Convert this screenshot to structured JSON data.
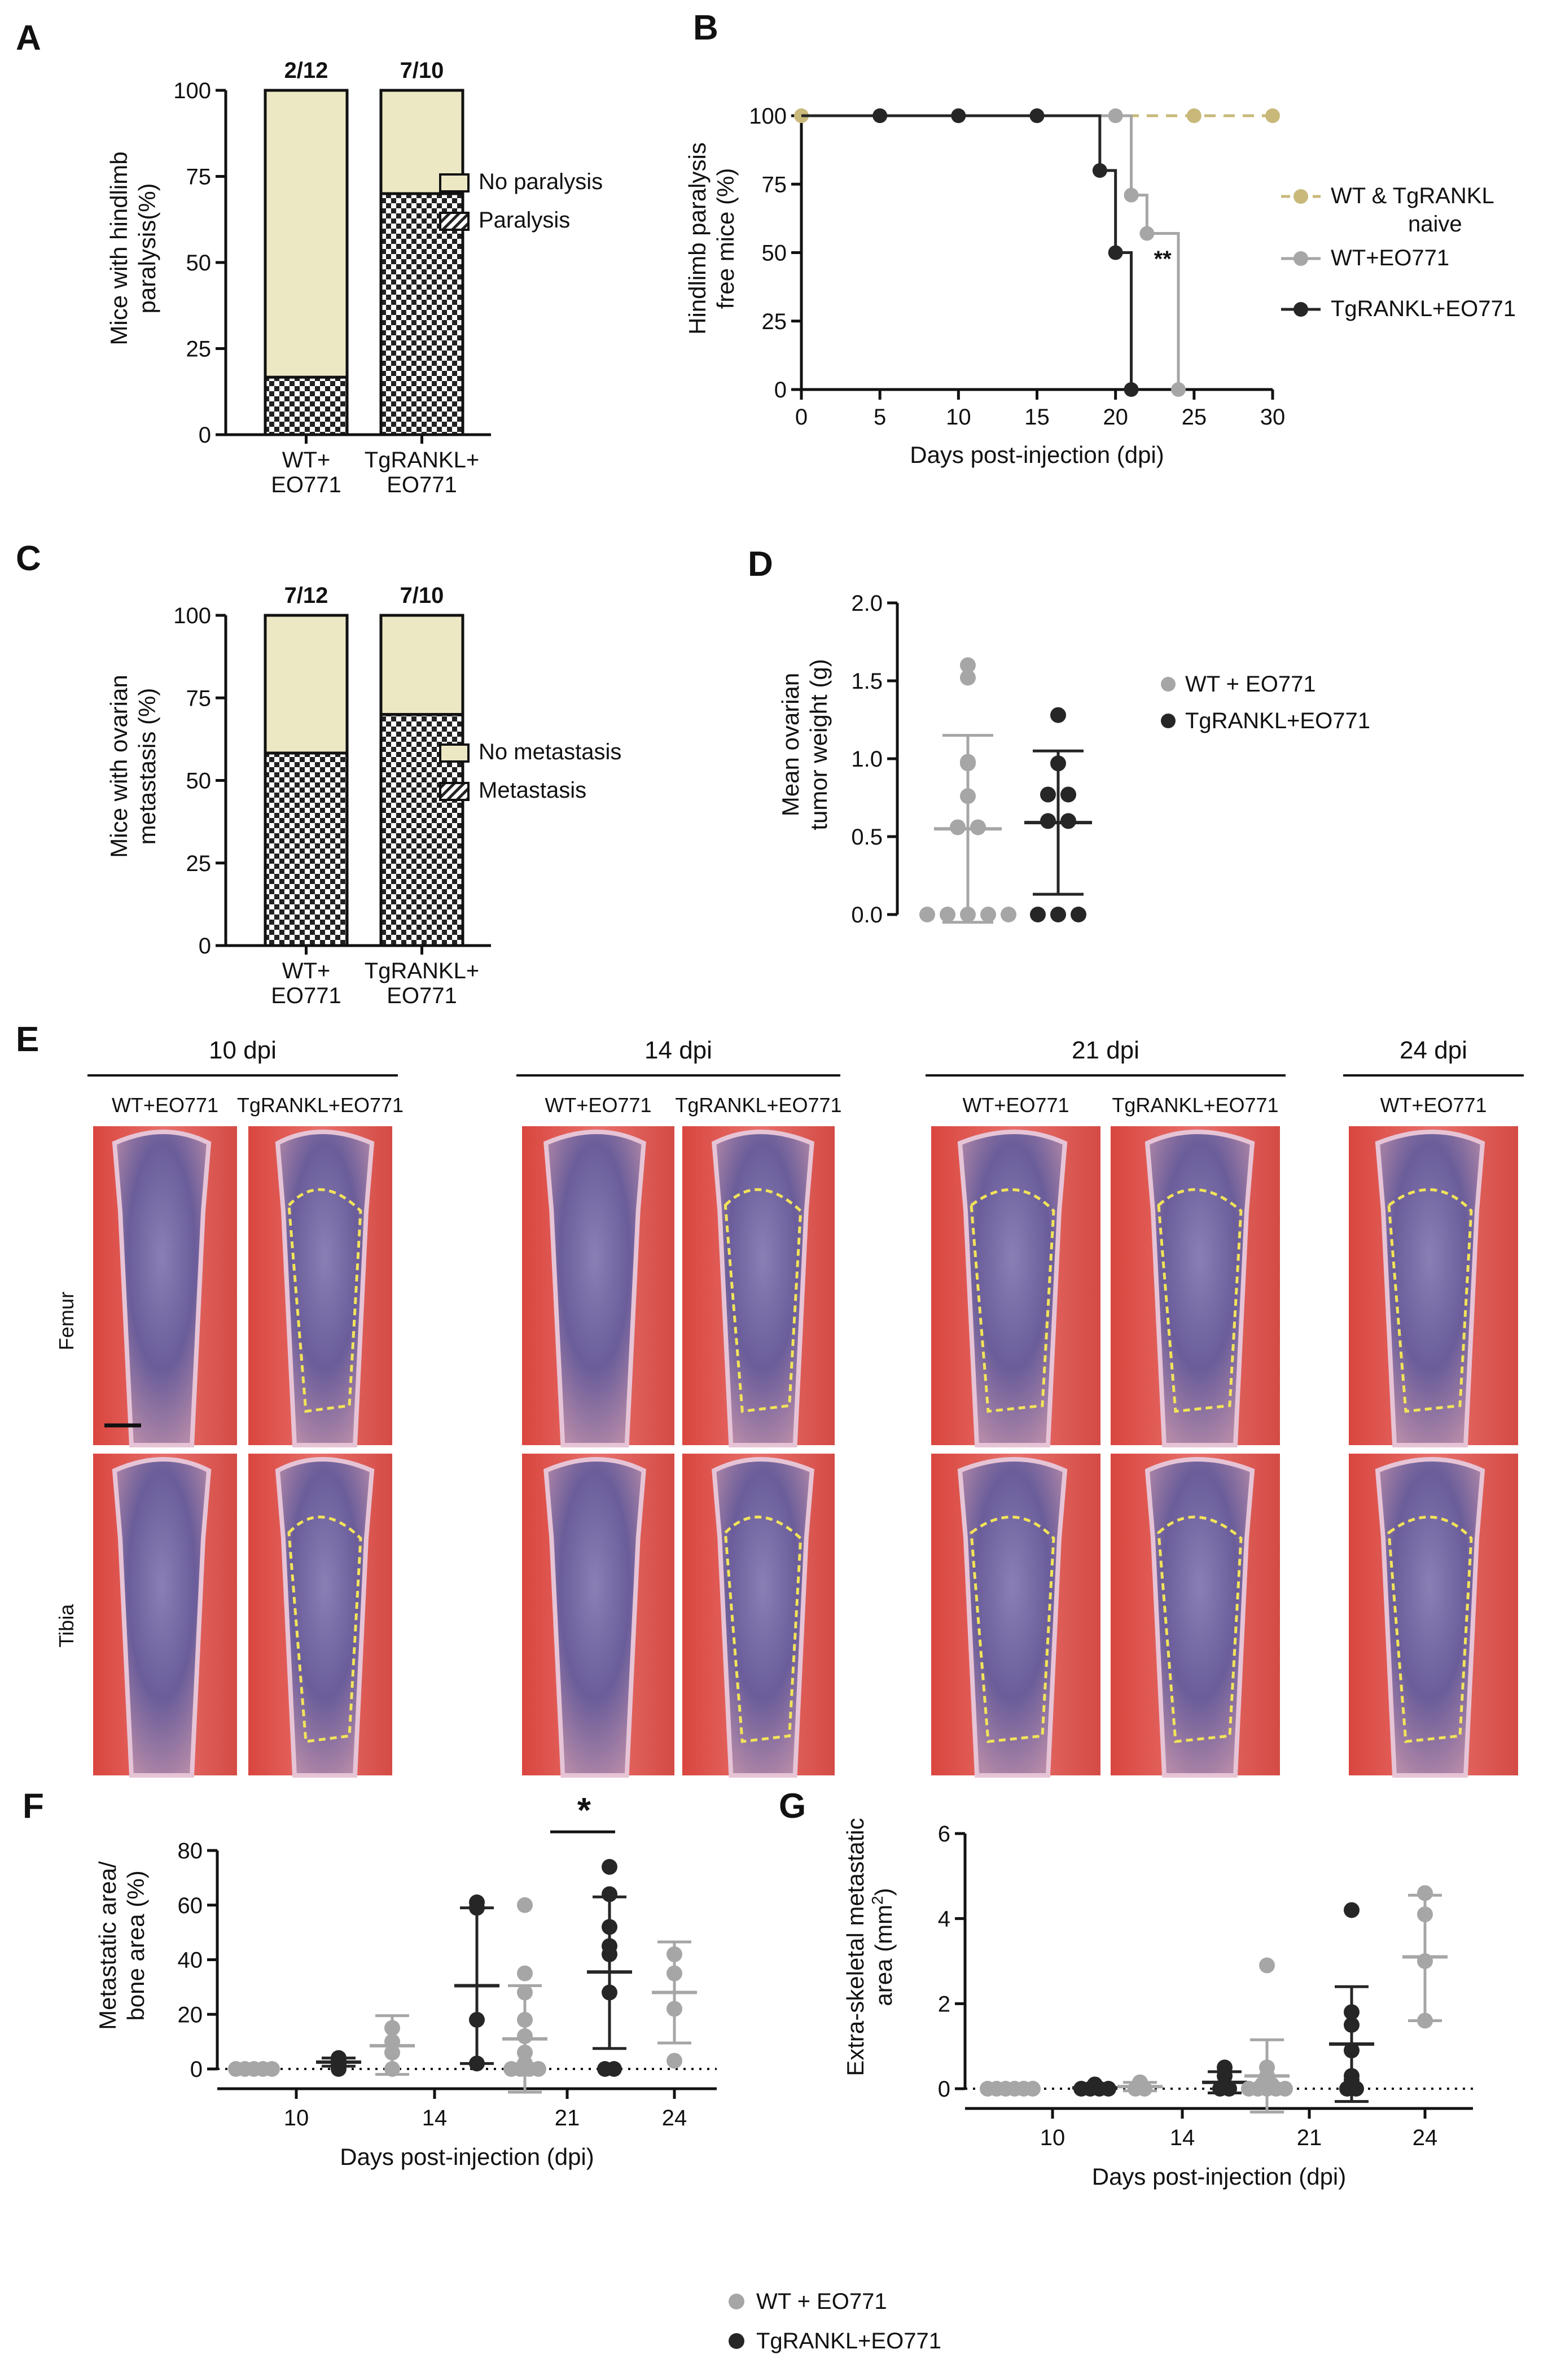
{
  "panels": {
    "A": "A",
    "B": "B",
    "C": "C",
    "D": "D",
    "E": "E",
    "F": "F",
    "G": "G"
  },
  "colors": {
    "gray": "#a6a6a6",
    "black": "#262626",
    "tan": "#c8b97a",
    "bar_fill": "#ece8c4"
  },
  "chart_data": [
    {
      "id": "A",
      "type": "bar",
      "ylabel_lines": [
        "Mice with hindlimb",
        "paralysis(%)"
      ],
      "ylim": [
        0,
        100
      ],
      "yticks": [
        "0",
        "25",
        "50",
        "75",
        "100"
      ],
      "categories": [
        [
          "WT+",
          "EO771"
        ],
        [
          "TgRANKL+",
          "EO771"
        ]
      ],
      "series": [
        {
          "name": "No paralysis",
          "values": [
            83.3,
            30
          ]
        },
        {
          "name": "Paralysis",
          "values": [
            16.7,
            70
          ]
        }
      ],
      "annotations": [
        "2/12",
        "7/10"
      ],
      "legend_placement": "right"
    },
    {
      "id": "B",
      "type": "line",
      "ylabel_lines": [
        "Hindlimb paralysis",
        "free mice (%)"
      ],
      "xlabel": "Days post-injection (dpi)",
      "xlim": [
        0,
        30
      ],
      "ylim": [
        0,
        100
      ],
      "xticks": [
        "0",
        "5",
        "10",
        "15",
        "20",
        "25",
        "30"
      ],
      "yticks": [
        "0",
        "25",
        "50",
        "75",
        "100"
      ],
      "series": [
        {
          "name_lines": [
            "WT & TgRANKL",
            "naive"
          ],
          "style": "dashed",
          "x": [
            0,
            5,
            10,
            15,
            20,
            25,
            30
          ],
          "y": [
            100,
            100,
            100,
            100,
            100,
            100,
            100
          ]
        },
        {
          "name_lines": [
            "WT+EO771"
          ],
          "style": "step",
          "x": [
            0,
            5,
            10,
            15,
            20,
            21,
            22,
            24
          ],
          "y": [
            100,
            100,
            100,
            100,
            100,
            71,
            57,
            0
          ]
        },
        {
          "name_lines": [
            "TgRANKL+EO771"
          ],
          "style": "step",
          "x": [
            0,
            5,
            10,
            15,
            19,
            20,
            21
          ],
          "y": [
            100,
            100,
            100,
            100,
            80,
            50,
            0
          ]
        }
      ],
      "significance": "**",
      "legend_placement": "right"
    },
    {
      "id": "C",
      "type": "bar",
      "ylabel_lines": [
        "Mice with ovarian",
        "metastasis (%)"
      ],
      "ylim": [
        0,
        100
      ],
      "yticks": [
        "0",
        "25",
        "50",
        "75",
        "100"
      ],
      "categories": [
        [
          "WT+",
          "EO771"
        ],
        [
          "TgRANKL+",
          "EO771"
        ]
      ],
      "series": [
        {
          "name": "No metastasis",
          "values": [
            41.7,
            30
          ]
        },
        {
          "name": "Metastasis",
          "values": [
            58.3,
            70
          ]
        }
      ],
      "annotations": [
        "7/12",
        "7/10"
      ],
      "legend_placement": "right"
    },
    {
      "id": "D",
      "type": "scatter",
      "ylabel_lines": [
        "Mean ovarian",
        "tumor weight (g)"
      ],
      "ylim": [
        0,
        2.0
      ],
      "yticks": [
        "0.0",
        "0.5",
        "1.0",
        "1.5",
        "2.0"
      ],
      "groups": [
        {
          "name": "WT + EO771",
          "points": [
            1.6,
            1.52,
            0.98,
            0.97,
            0.76,
            0.56,
            0.56,
            0.0,
            0.0,
            0.0,
            0.0,
            0.0
          ],
          "mean": 0.55,
          "sd_low": -0.05,
          "sd_high": 1.15
        },
        {
          "name": "TgRANKL+EO771",
          "points": [
            1.28,
            0.97,
            0.77,
            0.77,
            0.6,
            0.6,
            0.0,
            0.0,
            0.0
          ],
          "mean": 0.59,
          "sd_low": 0.13,
          "sd_high": 1.05
        }
      ],
      "legend_placement": "right"
    },
    {
      "id": "F",
      "type": "scatter",
      "ylabel_lines": [
        "Metastatic area/",
        "bone area (%)"
      ],
      "xlabel": "Days post-injection (dpi)",
      "ylim": [
        0,
        80
      ],
      "yticks": [
        "0",
        "20",
        "40",
        "60",
        "80"
      ],
      "xticks": [
        "10",
        "14",
        "21",
        "24"
      ],
      "groups": [
        {
          "name": "WT + EO771",
          "day": "10",
          "points": [
            0,
            0,
            0,
            0,
            0
          ],
          "mean": 0,
          "sd_low": 0,
          "sd_high": 0
        },
        {
          "name": "TgRANKL+EO771",
          "day": "10",
          "points": [
            4,
            3,
            2,
            1,
            0
          ],
          "mean": 2.5,
          "sd_low": 1,
          "sd_high": 4
        },
        {
          "name": "WT + EO771",
          "day": "14",
          "points": [
            15,
            10,
            6,
            0
          ],
          "mean": 8.5,
          "sd_low": -2,
          "sd_high": 19.5
        },
        {
          "name": "TgRANKL+EO771",
          "day": "14",
          "points": [
            61,
            59,
            18,
            2
          ],
          "mean": 30.5,
          "sd_low": 2,
          "sd_high": 59
        },
        {
          "name": "WT + EO771",
          "day": "21",
          "points": [
            60,
            35,
            28,
            18,
            12,
            6,
            2,
            0,
            0,
            0,
            0
          ],
          "mean": 11,
          "sd_low": -8.5,
          "sd_high": 30.5
        },
        {
          "name": "TgRANKL+EO771",
          "day": "21",
          "points": [
            74,
            64,
            52,
            45,
            42,
            28,
            0,
            0
          ],
          "mean": 35.5,
          "sd_low": 7.5,
          "sd_high": 63
        },
        {
          "name": "WT + EO771",
          "day": "24",
          "points": [
            42,
            35,
            22,
            3
          ],
          "mean": 28,
          "sd_low": 9.5,
          "sd_high": 46.5
        }
      ],
      "significance": "*"
    },
    {
      "id": "G",
      "type": "scatter",
      "ylabel_lines": [
        "Extra-skeletal metastatic",
        "area (mm"
      ],
      "ylabel_sup": "2",
      "ylabel_close": ")",
      "xlabel": "Days post-injection (dpi)",
      "ylim": [
        0,
        6
      ],
      "yticks": [
        "0",
        "2",
        "4",
        "6"
      ],
      "xticks": [
        "10",
        "14",
        "21",
        "24"
      ],
      "groups": [
        {
          "name": "WT + EO771",
          "day": "10",
          "points": [
            0,
            0,
            0,
            0,
            0,
            0
          ],
          "mean": 0,
          "sd_low": 0,
          "sd_high": 0
        },
        {
          "name": "TgRANKL+EO771",
          "day": "10",
          "points": [
            0.1,
            0.05,
            0,
            0,
            0,
            0
          ],
          "mean": 0.02,
          "sd_low": 0,
          "sd_high": 0.05
        },
        {
          "name": "WT + EO771",
          "day": "14",
          "points": [
            0.15,
            0.1,
            0.05,
            0,
            0
          ],
          "mean": 0.05,
          "sd_low": -0.05,
          "sd_high": 0.15
        },
        {
          "name": "TgRANKL+EO771",
          "day": "14",
          "points": [
            0.5,
            0.3,
            0.1,
            0,
            0
          ],
          "mean": 0.15,
          "sd_low": -0.1,
          "sd_high": 0.4
        },
        {
          "name": "WT + EO771",
          "day": "21",
          "points": [
            2.9,
            0.5,
            0.3,
            0.2,
            0.1,
            0.1,
            0,
            0,
            0,
            0,
            0
          ],
          "mean": 0.3,
          "sd_low": -0.55,
          "sd_high": 1.15
        },
        {
          "name": "TgRANKL+EO771",
          "day": "21",
          "points": [
            4.2,
            1.8,
            1.5,
            0.9,
            0.3,
            0.2,
            0,
            0
          ],
          "mean": 1.05,
          "sd_low": -0.3,
          "sd_high": 2.4
        },
        {
          "name": "WT + EO771",
          "day": "24",
          "points": [
            4.6,
            4.1,
            3.0,
            1.6
          ],
          "mean": 3.1,
          "sd_low": 1.6,
          "sd_high": 4.55
        }
      ]
    }
  ],
  "histology": {
    "timepoints": [
      {
        "label": "10 dpi",
        "columns": [
          "WT+EO771",
          "TgRANKL+EO771"
        ]
      },
      {
        "label": "14 dpi",
        "columns": [
          "WT+EO771",
          "TgRANKL+EO771"
        ]
      },
      {
        "label": "21 dpi",
        "columns": [
          "WT+EO771",
          "TgRANKL+EO771"
        ]
      },
      {
        "label": "24 dpi",
        "columns": [
          "WT+EO771"
        ]
      }
    ],
    "rows": [
      "Femur",
      "Tibia"
    ]
  },
  "bottom_legend": [
    "WT + EO771",
    "TgRANKL+EO771"
  ]
}
